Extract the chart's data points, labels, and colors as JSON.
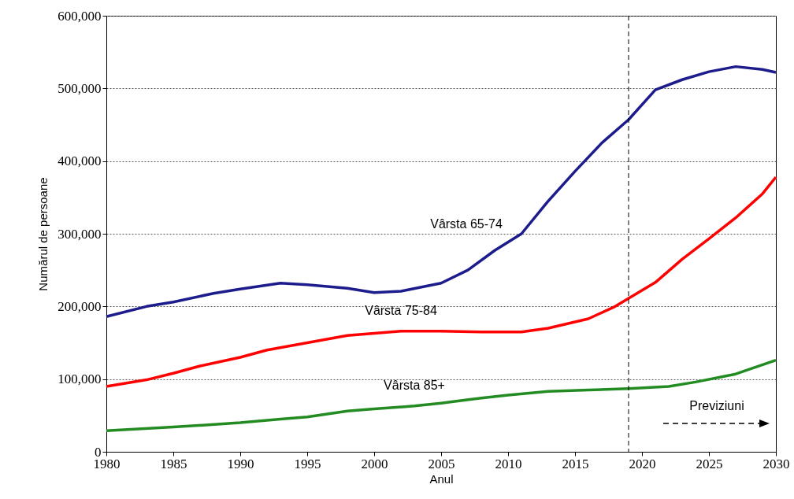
{
  "chart_data": {
    "type": "line",
    "xlabel": "Anul",
    "ylabel": "Numărul de persoane",
    "xlim": [
      1980,
      2030
    ],
    "xticks": [
      1980,
      1985,
      1990,
      1995,
      2000,
      2005,
      2010,
      2015,
      2020,
      2025,
      2030
    ],
    "ylim": [
      0,
      600000
    ],
    "yticks": [
      {
        "value": 0,
        "label": "0"
      },
      {
        "value": 100000,
        "label": "100,000"
      },
      {
        "value": 200000,
        "label": "200,000"
      },
      {
        "value": 300000,
        "label": "300,000"
      },
      {
        "value": 400000,
        "label": "400,000"
      },
      {
        "value": 500000,
        "label": "500,000"
      },
      {
        "value": 600000,
        "label": "600,000"
      }
    ],
    "grid": "y",
    "marker": "none",
    "line_style": "solid",
    "series": [
      {
        "name": "Vârsta 65-74",
        "color": "#1c1c8c",
        "x": [
          1980,
          1983,
          1985,
          1988,
          1990,
          1993,
          1995,
          1998,
          2000,
          2002,
          2005,
          2007,
          2009,
          2011,
          2013,
          2015,
          2017,
          2019,
          2021,
          2023,
          2025,
          2027,
          2029,
          2030
        ],
        "values": [
          186000,
          200000,
          206000,
          218000,
          224000,
          232000,
          230000,
          225000,
          219000,
          221000,
          232000,
          250000,
          277000,
          300000,
          345000,
          386000,
          425000,
          457000,
          498000,
          512000,
          523000,
          530000,
          526000,
          522000
        ]
      },
      {
        "name": "Vârsta 75-84",
        "color": "#ff0000",
        "x": [
          1980,
          1983,
          1985,
          1987,
          1990,
          1992,
          1995,
          1998,
          2000,
          2002,
          2005,
          2008,
          2011,
          2013,
          2016,
          2018,
          2021,
          2023,
          2025,
          2027,
          2029,
          2030
        ],
        "values": [
          90000,
          99000,
          108000,
          118000,
          130000,
          140000,
          150000,
          160000,
          163000,
          166000,
          166000,
          165000,
          165000,
          170000,
          183000,
          200000,
          233000,
          265000,
          293000,
          322000,
          355000,
          378000
        ]
      },
      {
        "name": "Vârsta 85+",
        "color": "#228b22",
        "x": [
          1980,
          1985,
          1990,
          1993,
          1995,
          1998,
          2000,
          2003,
          2005,
          2008,
          2010,
          2013,
          2016,
          2019,
          2022,
          2024,
          2027,
          2030
        ],
        "values": [
          29000,
          34000,
          40000,
          45000,
          48000,
          56000,
          59000,
          63000,
          67000,
          74000,
          78000,
          83000,
          85000,
          87000,
          90000,
          96000,
          107000,
          126000
        ]
      }
    ],
    "ref_lines": [
      {
        "axis": "x",
        "value": 2019,
        "line_style": "dashed"
      }
    ],
    "annotations": [
      "Previziuni"
    ]
  }
}
